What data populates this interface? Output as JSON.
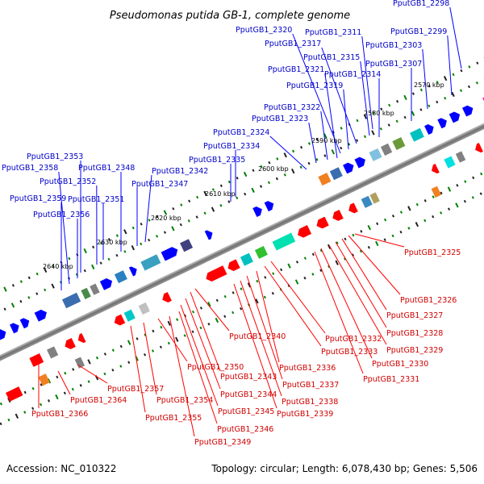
{
  "title": "Pseudomonas putida GB-1, complete genome",
  "footer": {
    "accession": "Accession: NC_010322",
    "summary": "Topology: circular; Length: 6,078,430 bp; Genes: 5,506"
  },
  "kbp_labels": [
    {
      "id": "2570",
      "text": "2570 kbp"
    },
    {
      "id": "2580",
      "text": "2580 kbp"
    },
    {
      "id": "2590",
      "text": "2590 kbp"
    },
    {
      "id": "2600",
      "text": "2600 kbp"
    },
    {
      "id": "2610",
      "text": "2610 kbp"
    },
    {
      "id": "2620",
      "text": "2620 kbp"
    },
    {
      "id": "2630",
      "text": "2630 kbp"
    },
    {
      "id": "2640",
      "text": "2640 kbp"
    }
  ],
  "blue_genes": [
    "PputGB1_2298",
    "PputGB1_2299",
    "PputGB1_2303",
    "PputGB1_2307",
    "PputGB1_2311",
    "PputGB1_2314",
    "PputGB1_2315",
    "PputGB1_2317",
    "PputGB1_2319",
    "PputGB1_2320",
    "PputGB1_2321",
    "PputGB1_2322",
    "PputGB1_2323",
    "PputGB1_2324",
    "PputGB1_2334",
    "PputGB1_2335",
    "PputGB1_2342",
    "PputGB1_2347",
    "PputGB1_2348",
    "PputGB1_2351",
    "PputGB1_2352",
    "PputGB1_2353",
    "PputGB1_2356",
    "PputGB1_2358",
    "PputGB1_2359"
  ],
  "red_genes": [
    "PputGB1_2325",
    "PputGB1_2326",
    "PputGB1_2327",
    "PputGB1_2328",
    "PputGB1_2329",
    "PputGB1_2330",
    "PputGB1_2331",
    "PputGB1_2332",
    "PputGB1_2333",
    "PputGB1_2336",
    "PputGB1_2337",
    "PputGB1_2338",
    "PputGB1_2339",
    "PputGB1_2340",
    "PputGB1_2343",
    "PputGB1_2344",
    "PputGB1_2345",
    "PputGB1_2346",
    "PputGB1_2349",
    "PputGB1_2350",
    "PputGB1_2354",
    "PputGB1_2355",
    "PputGB1_2357",
    "PputGB1_2364",
    "PputGB1_2366"
  ],
  "colors": {
    "forward_gene": "#0000ff",
    "reverse_gene": "#ff0000",
    "backbone": "#808080",
    "tick_green": "#008000",
    "blue_label": "#0000c8",
    "red_label": "#d00000"
  }
}
